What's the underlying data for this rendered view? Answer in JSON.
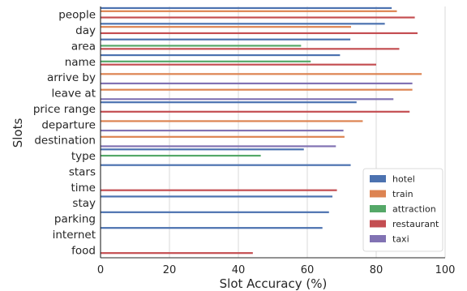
{
  "chart_data": {
    "type": "bar",
    "orientation": "horizontal",
    "xlabel": "Slot Accuracy (%)",
    "ylabel": "Slots",
    "xlim": [
      0,
      100
    ],
    "xticks": [
      0,
      20,
      40,
      60,
      80,
      100
    ],
    "xtick_labels": [
      "0",
      "20",
      "40",
      "60",
      "80",
      "100"
    ],
    "grid": "vertical",
    "legend_position": "bottom-right",
    "categories": [
      "people",
      "day",
      "area",
      "name",
      "arrive by",
      "leave at",
      "price range",
      "departure",
      "destination",
      "type",
      "stars",
      "time",
      "stay",
      "parking",
      "internet",
      "food"
    ],
    "series": [
      {
        "name": "hotel",
        "color": "#4c72b0",
        "values": [
          84.5,
          82.5,
          72.5,
          69.5,
          null,
          null,
          74.3,
          null,
          null,
          59.0,
          72.6,
          null,
          67.3,
          66.3,
          64.4,
          null
        ]
      },
      {
        "name": "train",
        "color": "#dd8452",
        "values": [
          86.0,
          72.7,
          null,
          null,
          93.2,
          90.5,
          null,
          76.1,
          70.8,
          null,
          null,
          null,
          null,
          null,
          null,
          null
        ]
      },
      {
        "name": "attraction",
        "color": "#55a868",
        "values": [
          null,
          null,
          58.2,
          61.0,
          null,
          null,
          null,
          null,
          null,
          46.5,
          null,
          null,
          null,
          null,
          null,
          null
        ]
      },
      {
        "name": "restaurant",
        "color": "#c44e52",
        "values": [
          91.2,
          92.0,
          86.7,
          80.0,
          null,
          null,
          89.7,
          null,
          null,
          null,
          null,
          68.6,
          null,
          null,
          null,
          44.2
        ]
      },
      {
        "name": "taxi",
        "color": "#8172b3",
        "values": [
          null,
          null,
          null,
          null,
          90.5,
          85.0,
          null,
          70.5,
          68.3,
          null,
          null,
          null,
          null,
          null,
          null,
          null
        ]
      }
    ]
  }
}
